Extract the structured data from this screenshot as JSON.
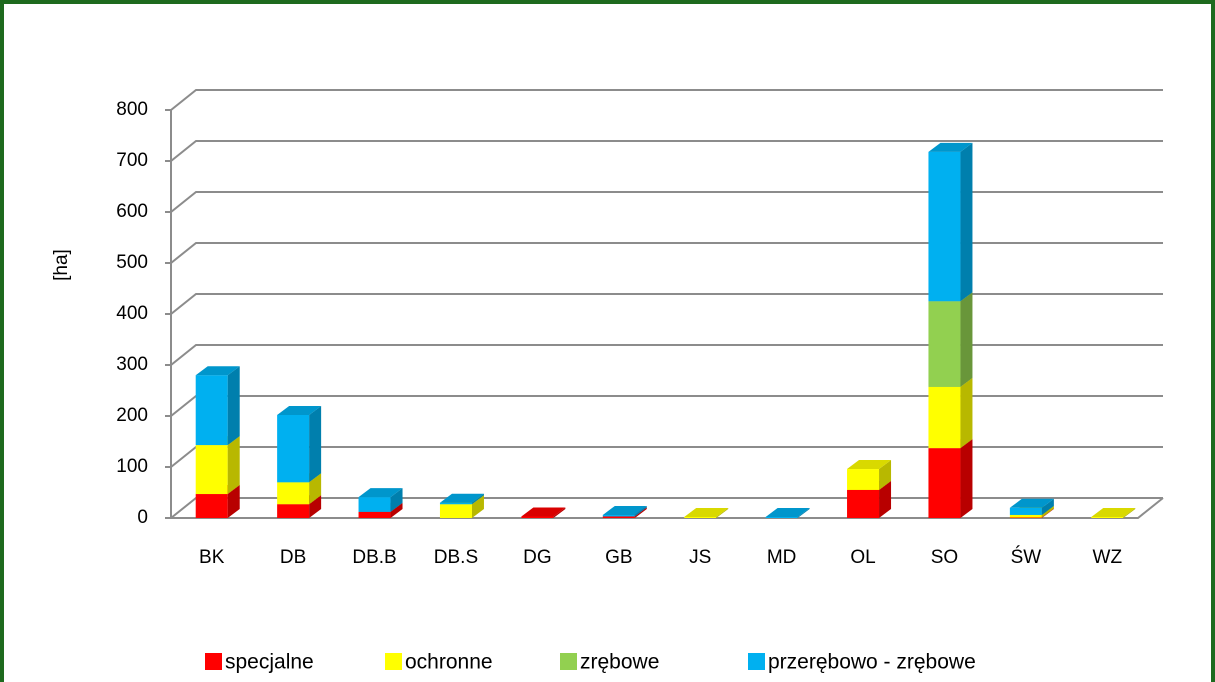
{
  "chart_data": {
    "type": "bar3d_stacked",
    "y_label": "[ha]",
    "categories": [
      "BK",
      "DB",
      "DB.B",
      "DB.S",
      "DG",
      "GB",
      "JS",
      "MD",
      "OL",
      "SO",
      "ŚW",
      "WZ"
    ],
    "series": [
      {
        "name": "specjalne",
        "color": "#ff0000",
        "values": [
          47,
          27,
          12,
          0,
          3,
          3,
          0,
          0,
          55,
          137,
          1,
          0
        ]
      },
      {
        "name": "ochronne",
        "color": "#ffff00",
        "values": [
          96,
          43,
          0,
          27,
          0,
          0,
          2,
          0,
          41,
          120,
          5,
          2
        ]
      },
      {
        "name": "zrębowe",
        "color": "#92d050",
        "values": [
          0,
          0,
          0,
          0,
          0,
          0,
          0,
          0,
          0,
          168,
          0,
          0
        ]
      },
      {
        "name": "przerębowo - zrębowe",
        "color": "#00b0f0",
        "values": [
          137,
          132,
          29,
          3,
          0,
          3,
          0,
          2,
          0,
          293,
          14,
          0
        ]
      }
    ],
    "ylim": [
      0,
      800
    ],
    "yticks": [
      0,
      100,
      200,
      300,
      400,
      500,
      600,
      700,
      800
    ],
    "grid": true
  }
}
